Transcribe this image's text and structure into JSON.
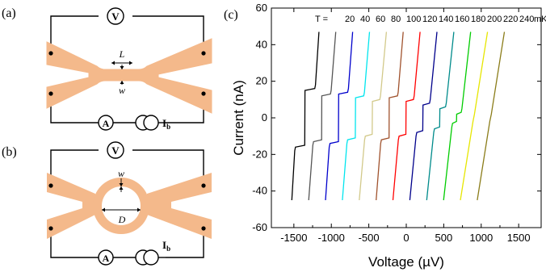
{
  "figure": {
    "panel_a": {
      "label": "(a)",
      "L": "L",
      "w": "w",
      "V": "V",
      "A": "A",
      "Ib": "I",
      "Ib_sub": "b"
    },
    "panel_b": {
      "label": "(b)",
      "w": "w",
      "D": "D",
      "V": "V",
      "A": "A",
      "Ib": "I",
      "Ib_sub": "b"
    },
    "panel_c": {
      "label": "(c)"
    },
    "colors": {
      "pad": "#f4b98b",
      "wire": "#000000"
    }
  },
  "chart_data": {
    "type": "line",
    "title": "",
    "xlabel": "Voltage (µV)",
    "ylabel": "Current (nA)",
    "xlim": [
      -1800,
      1800
    ],
    "ylim": [
      -60,
      60
    ],
    "xticks": [
      "-1500",
      "-1000",
      "-500",
      "0",
      "500",
      "1000",
      "1500"
    ],
    "yticks": [
      "-60",
      "-40",
      "-20",
      "0",
      "20",
      "40",
      "60"
    ],
    "legend_prefix": "T = ",
    "legend_unit": "mK",
    "series": [
      {
        "name": "20",
        "color": "#000000",
        "offset": -1350,
        "jump": 18
      },
      {
        "name": "40",
        "color": "#555555",
        "offset": -1125,
        "jump": 15
      },
      {
        "name": "60",
        "color": "#0000cc",
        "offset": -900,
        "jump": 16
      },
      {
        "name": "80",
        "color": "#00e5ee",
        "offset": -675,
        "jump": 14
      },
      {
        "name": "100",
        "color": "#d2c98a",
        "offset": -450,
        "jump": 12
      },
      {
        "name": "120",
        "color": "#a0522d",
        "offset": -225,
        "jump": 14
      },
      {
        "name": "140",
        "color": "#ff0000",
        "offset": 0,
        "jump": 12
      },
      {
        "name": "160",
        "color": "#00008b",
        "offset": 225,
        "jump": 10
      },
      {
        "name": "180",
        "color": "#008b8b",
        "offset": 450,
        "jump": 8
      },
      {
        "name": "200",
        "color": "#00cc00",
        "offset": 675,
        "jump": 5
      },
      {
        "name": "220",
        "color": "#e6e600",
        "offset": 900,
        "jump": 0
      },
      {
        "name": "240",
        "color": "#8b7d1a",
        "offset": 1125,
        "jump": 0
      }
    ]
  }
}
